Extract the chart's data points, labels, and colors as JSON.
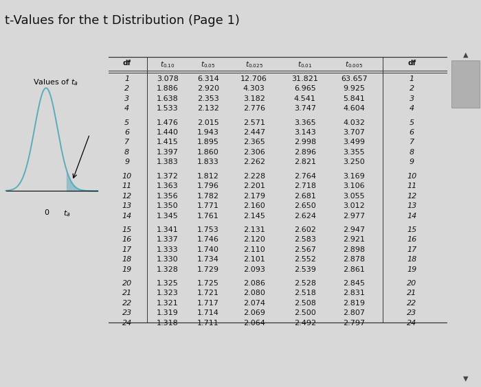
{
  "page_title": "t-Values for the t Distribution (Page 1)",
  "rows": [
    [
      1,
      3.078,
      6.314,
      12.706,
      31.821,
      63.657
    ],
    [
      2,
      1.886,
      2.92,
      4.303,
      6.965,
      9.925
    ],
    [
      3,
      1.638,
      2.353,
      3.182,
      4.541,
      5.841
    ],
    [
      4,
      1.533,
      2.132,
      2.776,
      3.747,
      4.604
    ],
    [
      5,
      1.476,
      2.015,
      2.571,
      3.365,
      4.032
    ],
    [
      6,
      1.44,
      1.943,
      2.447,
      3.143,
      3.707
    ],
    [
      7,
      1.415,
      1.895,
      2.365,
      2.998,
      3.499
    ],
    [
      8,
      1.397,
      1.86,
      2.306,
      2.896,
      3.355
    ],
    [
      9,
      1.383,
      1.833,
      2.262,
      2.821,
      3.25
    ],
    [
      10,
      1.372,
      1.812,
      2.228,
      2.764,
      3.169
    ],
    [
      11,
      1.363,
      1.796,
      2.201,
      2.718,
      3.106
    ],
    [
      12,
      1.356,
      1.782,
      2.179,
      2.681,
      3.055
    ],
    [
      13,
      1.35,
      1.771,
      2.16,
      2.65,
      3.012
    ],
    [
      14,
      1.345,
      1.761,
      2.145,
      2.624,
      2.977
    ],
    [
      15,
      1.341,
      1.753,
      2.131,
      2.602,
      2.947
    ],
    [
      16,
      1.337,
      1.746,
      2.12,
      2.583,
      2.921
    ],
    [
      17,
      1.333,
      1.74,
      2.11,
      2.567,
      2.898
    ],
    [
      18,
      1.33,
      1.734,
      2.101,
      2.552,
      2.878
    ],
    [
      19,
      1.328,
      1.729,
      2.093,
      2.539,
      2.861
    ],
    [
      20,
      1.325,
      1.725,
      2.086,
      2.528,
      2.845
    ],
    [
      21,
      1.323,
      1.721,
      2.08,
      2.518,
      2.831
    ],
    [
      22,
      1.321,
      1.717,
      2.074,
      2.508,
      2.819
    ],
    [
      23,
      1.319,
      1.714,
      2.069,
      2.5,
      2.807
    ],
    [
      24,
      1.318,
      1.711,
      2.064,
      2.492,
      2.797
    ]
  ],
  "group_sizes": [
    4,
    5,
    5,
    5,
    5
  ],
  "bg_color": "#d8d8d8",
  "white_bg": "#ffffff",
  "text_color": "#111111",
  "title_fontsize": 13,
  "cell_fontsize": 8,
  "header_fontsize": 7.5,
  "scrollbar_gray": "#b0b0b0",
  "scrollbar_light": "#d0d0d0"
}
